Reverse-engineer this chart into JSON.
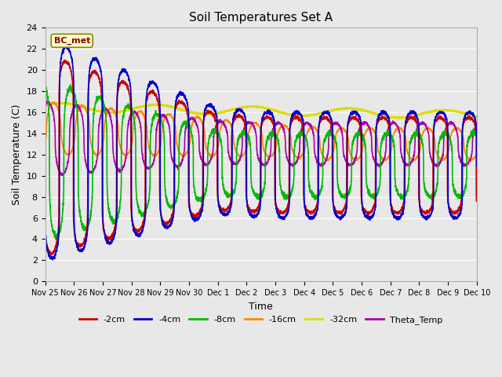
{
  "title": "Soil Temperatures Set A",
  "xlabel": "Time",
  "ylabel": "Soil Temperature (C)",
  "ylim": [
    0,
    24
  ],
  "annotation": "BC_met",
  "tick_labels": [
    "Nov 25",
    "Nov 26",
    "Nov 27",
    "Nov 28",
    "Nov 29",
    "Nov 30",
    "Dec 1",
    "Dec 2",
    "Dec 3",
    "Dec 4",
    "Dec 5",
    "Dec 6",
    "Dec 7",
    "Dec 8",
    "Dec 9",
    "Dec 10"
  ],
  "legend_labels": [
    "-2cm",
    "-4cm",
    "-8cm",
    "-16cm",
    "-32cm",
    "Theta_Temp"
  ],
  "colors": {
    "-2cm": "#cc0000",
    "-4cm": "#0000cc",
    "-8cm": "#00bb00",
    "-16cm": "#ff8800",
    "-32cm": "#dddd00",
    "Theta_Temp": "#aa00aa"
  },
  "line_widths": {
    "-2cm": 1.2,
    "-4cm": 1.2,
    "-8cm": 1.2,
    "-16cm": 1.2,
    "-32cm": 1.8,
    "Theta_Temp": 1.2
  },
  "background_color": "#e8e8e8",
  "fig_background": "#f0f0f0"
}
